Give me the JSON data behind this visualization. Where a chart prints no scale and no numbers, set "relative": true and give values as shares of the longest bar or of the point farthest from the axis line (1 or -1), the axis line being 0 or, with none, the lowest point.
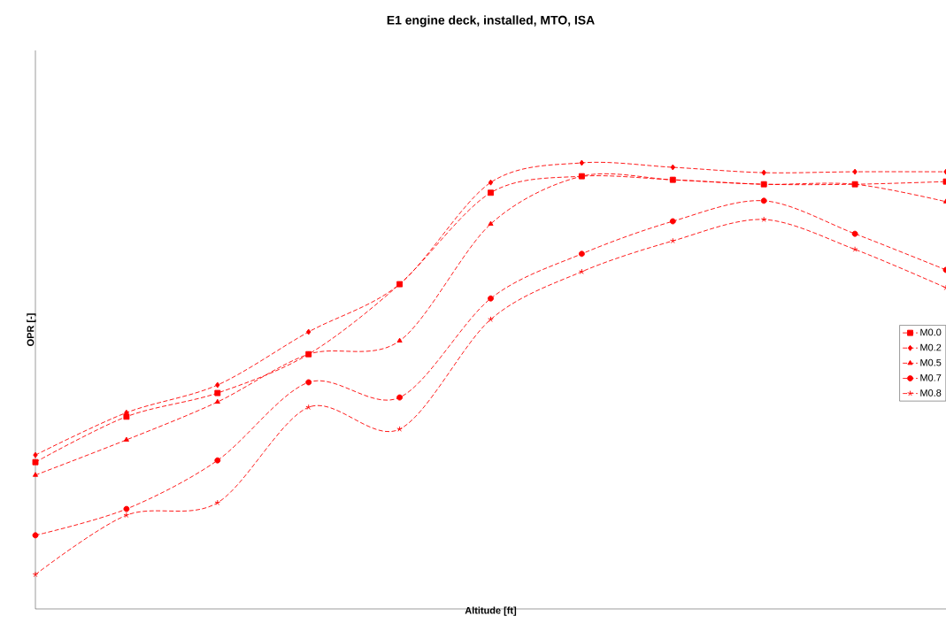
{
  "chart_data": {
    "type": "line",
    "title": "E1 engine deck, installed, MTO, ISA",
    "xlabel": "Altitude [ft]",
    "ylabel": "OPR [-]",
    "relative": true,
    "categories": [
      null,
      null,
      null,
      null,
      null,
      null,
      null,
      null,
      null,
      null,
      null
    ],
    "series": [
      {
        "name": "M0.0",
        "color": "#ff0000",
        "marker": "square",
        "values": [
          0.329,
          0.431,
          0.484,
          0.571,
          0.728,
          0.933,
          0.97,
          0.962,
          0.952,
          0.952,
          0.958
        ]
      },
      {
        "name": "M0.2",
        "color": "#ff0000",
        "marker": "diamond",
        "values": [
          0.345,
          0.44,
          0.502,
          0.621,
          0.728,
          0.956,
          1.0,
          0.99,
          0.978,
          0.98,
          0.98
        ]
      },
      {
        "name": "M0.5",
        "color": "#ff0000",
        "marker": "triangle",
        "values": [
          0.3,
          0.379,
          0.464,
          0.571,
          0.601,
          0.863,
          0.97,
          0.962,
          0.952,
          0.952,
          0.913
        ]
      },
      {
        "name": "M0.7",
        "color": "#ff0000",
        "marker": "circle",
        "values": [
          0.165,
          0.224,
          0.333,
          0.508,
          0.474,
          0.696,
          0.796,
          0.869,
          0.915,
          0.841,
          0.76
        ]
      },
      {
        "name": "M0.8",
        "color": "#ff0000",
        "marker": "cross",
        "values": [
          0.077,
          0.21,
          0.238,
          0.452,
          0.403,
          0.649,
          0.756,
          0.825,
          0.873,
          0.806,
          0.72
        ]
      }
    ],
    "line_style": "dashed",
    "legend": "right"
  }
}
